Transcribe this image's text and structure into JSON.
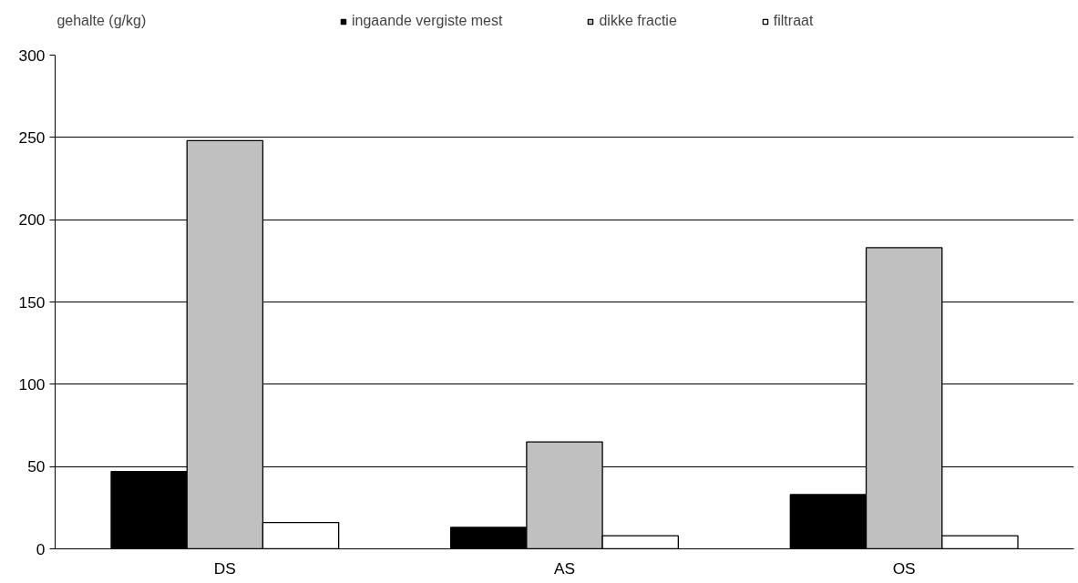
{
  "chart_data": {
    "type": "bar",
    "ylabel": "gehalte (g/kg)",
    "categories": [
      "DS",
      "AS",
      "OS"
    ],
    "series": [
      {
        "name": "ingaande vergiste mest",
        "color": "#000000",
        "values": [
          47,
          13,
          33
        ]
      },
      {
        "name": "dikke fractie",
        "color": "#c0c0c0",
        "values": [
          248,
          65,
          183
        ]
      },
      {
        "name": "filtraat",
        "color": "#ffffff",
        "values": [
          16,
          8,
          8
        ]
      }
    ],
    "ylim": [
      0,
      300
    ],
    "yticks": [
      0,
      50,
      100,
      150,
      200,
      250,
      300
    ],
    "grid": "y",
    "legend": "top"
  }
}
